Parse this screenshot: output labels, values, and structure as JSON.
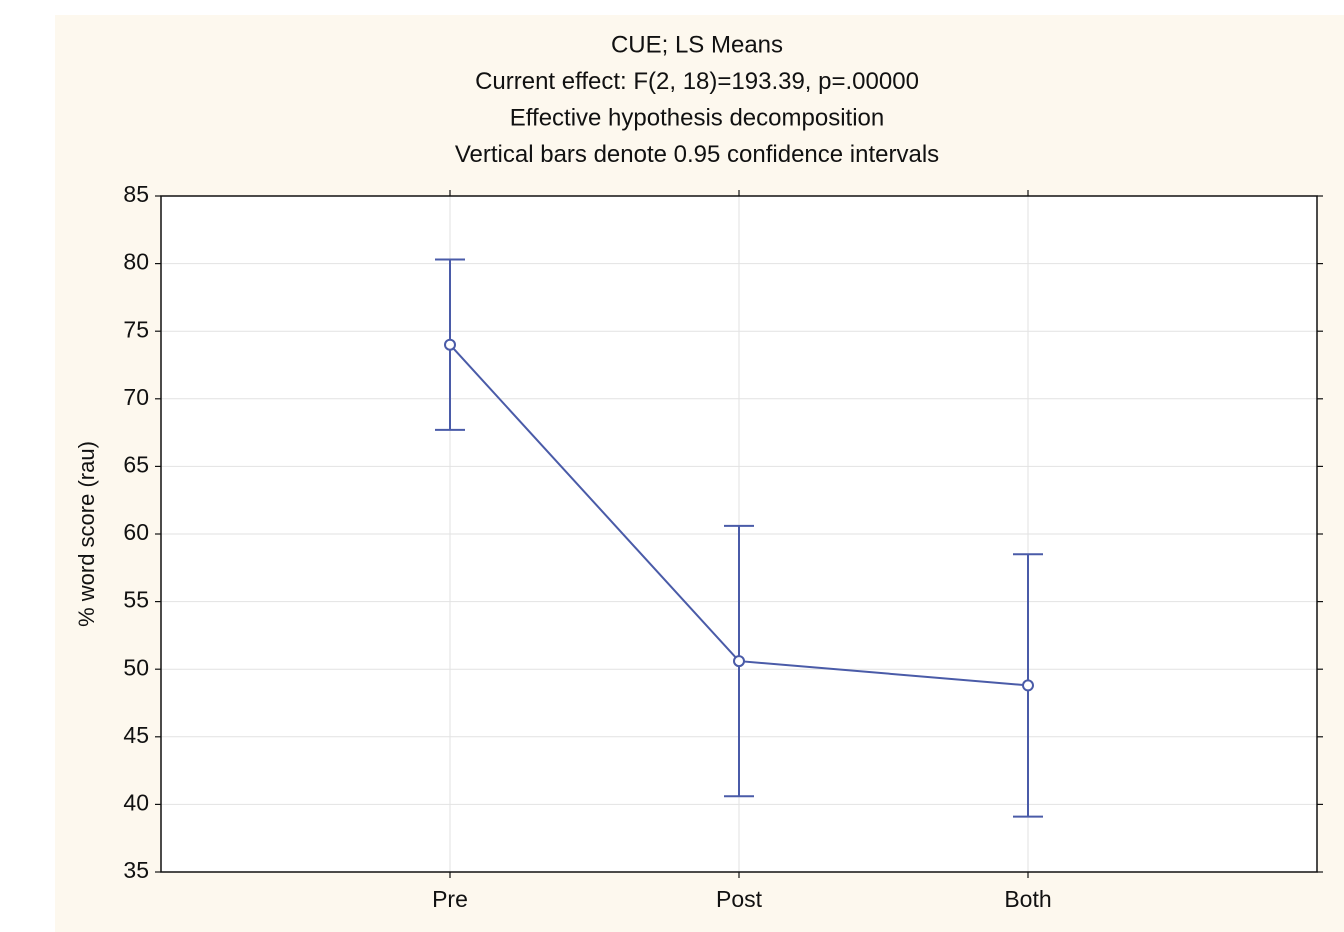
{
  "chart_data": {
    "type": "line",
    "title_lines": [
      "CUE; LS Means",
      "Current effect: F(2, 18)=193.39, p=.00000",
      "Effective hypothesis decomposition",
      "Vertical bars denote 0.95 confidence intervals"
    ],
    "y_label": "% word score (rau)",
    "categories": [
      "Pre",
      "Post",
      "Both"
    ],
    "series": [
      {
        "color": "#4a5ba8",
        "values": [
          74.0,
          50.6,
          48.8
        ],
        "errors": [
          6.3,
          10.0,
          9.7
        ]
      }
    ],
    "ylim": [
      35,
      85
    ],
    "yticks": [
      35,
      40,
      45,
      50,
      55,
      60,
      65,
      70,
      75,
      80,
      85
    ],
    "grid": true
  }
}
